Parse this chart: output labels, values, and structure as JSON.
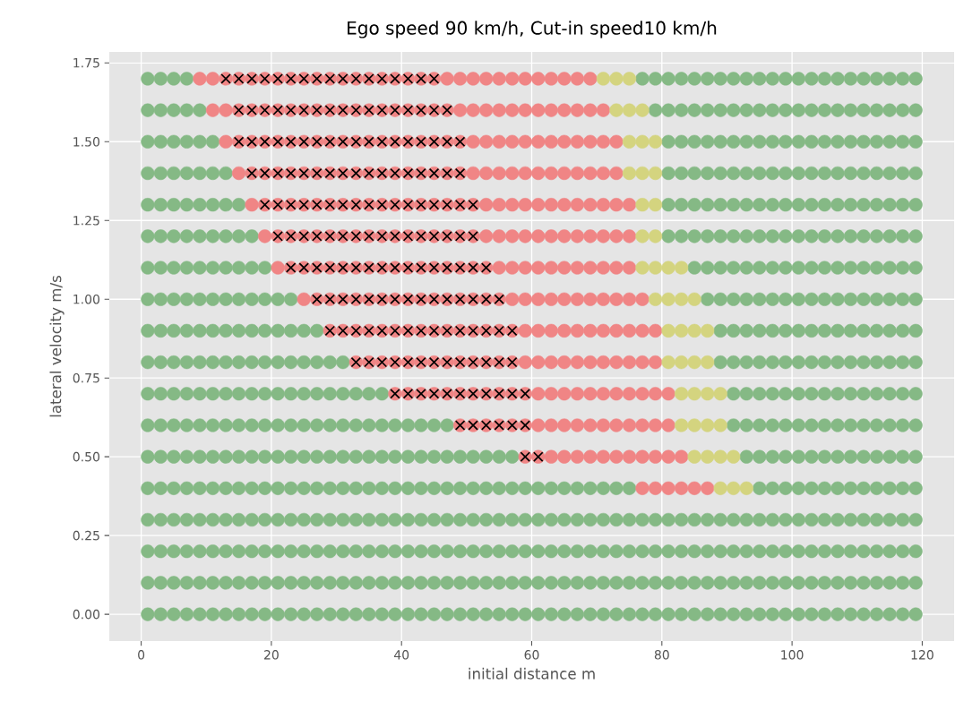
{
  "chart_data": {
    "type": "scatter",
    "title": "Ego speed 90 km/h, Cut-in speed10 km/h",
    "xlabel": "initial distance m",
    "ylabel": "lateral velocity m/s",
    "xlim": [
      -4.9,
      124.9
    ],
    "ylim": [
      -0.085,
      1.785
    ],
    "xticks": [
      0,
      20,
      40,
      60,
      80,
      100,
      120
    ],
    "yticks": [
      {
        "value": 0,
        "label": "0.00"
      },
      {
        "value": 0.25,
        "label": "0.25"
      },
      {
        "value": 0.5,
        "label": "0.50"
      },
      {
        "value": 0.75,
        "label": "0.75"
      },
      {
        "value": 1,
        "label": "1.00"
      },
      {
        "value": 1.25,
        "label": "1.25"
      },
      {
        "value": 1.5,
        "label": "1.50"
      },
      {
        "value": 1.75,
        "label": "1.75"
      }
    ],
    "grid": true,
    "series": [
      {
        "color": "#85b985",
        "marker": "circle",
        "x": [
          1,
          3,
          5,
          7,
          9,
          11,
          13,
          15,
          17,
          19,
          21,
          23,
          25,
          27,
          29,
          31,
          33,
          35,
          37,
          39,
          41,
          43,
          45,
          47,
          49,
          51,
          53,
          55,
          57,
          59,
          61,
          63,
          65,
          67,
          69,
          71,
          73,
          75,
          77,
          79,
          81,
          83,
          85,
          87,
          89,
          91,
          93,
          95,
          97,
          99,
          101,
          103,
          105,
          107,
          109,
          111,
          113,
          115,
          117,
          119,
          1,
          3,
          5,
          7,
          9,
          11,
          13,
          15,
          17,
          19,
          21,
          23,
          25,
          27,
          29,
          31,
          33,
          35,
          37,
          39,
          41,
          43,
          45,
          47,
          49,
          51,
          53,
          55,
          57,
          59,
          61,
          63,
          65,
          67,
          69,
          71,
          73,
          75,
          77,
          79,
          81,
          83,
          85,
          87,
          89,
          91,
          93,
          95,
          97,
          99,
          101,
          103,
          105,
          107,
          109,
          111,
          113,
          115,
          117,
          119,
          1,
          3,
          5,
          7,
          9,
          11,
          13,
          15,
          17,
          19,
          21,
          23,
          25,
          27,
          29,
          31,
          33,
          35,
          37,
          39,
          41,
          43,
          45,
          47,
          49,
          51,
          53,
          55,
          57,
          59,
          61,
          63,
          65,
          67,
          69,
          71,
          73,
          75,
          77,
          79,
          81,
          83,
          85,
          87,
          89,
          91,
          93,
          95,
          97,
          99,
          101,
          103,
          105,
          107,
          109,
          111,
          113,
          115,
          117,
          119,
          1,
          3,
          5,
          7,
          9,
          11,
          13,
          15,
          17,
          19,
          21,
          23,
          25,
          27,
          29,
          31,
          33,
          35,
          37,
          39,
          41,
          43,
          45,
          47,
          49,
          51,
          53,
          55,
          57,
          59,
          61,
          63,
          65,
          67,
          69,
          71,
          73,
          75,
          77,
          79,
          81,
          83,
          85,
          87,
          89,
          91,
          93,
          95,
          97,
          99,
          101,
          103,
          105,
          107,
          109,
          111,
          113,
          115,
          117,
          119,
          1,
          3,
          5,
          7,
          9,
          11,
          13,
          15,
          17,
          19,
          21,
          23,
          25,
          27,
          29,
          31,
          33,
          35,
          37,
          39,
          41,
          43,
          45,
          47,
          49,
          51,
          53,
          55,
          57,
          59,
          61,
          63,
          65,
          67,
          69,
          71,
          73,
          75,
          95,
          97,
          99,
          101,
          103,
          105,
          107,
          109,
          111,
          113,
          115,
          117,
          119,
          1,
          3,
          5,
          7,
          9,
          11,
          13,
          15,
          17,
          19,
          21,
          23,
          25,
          27,
          29,
          31,
          33,
          35,
          37,
          39,
          41,
          43,
          45,
          47,
          49,
          51,
          53,
          55,
          57,
          93,
          95,
          97,
          99,
          101,
          103,
          105,
          107,
          109,
          111,
          113,
          115,
          117,
          119,
          1,
          3,
          5,
          7,
          9,
          11,
          13,
          15,
          17,
          19,
          21,
          23,
          25,
          27,
          29,
          31,
          33,
          35,
          37,
          39,
          41,
          43,
          45,
          47,
          91,
          93,
          95,
          97,
          99,
          101,
          103,
          105,
          107,
          109,
          111,
          113,
          115,
          117,
          119,
          1,
          3,
          5,
          7,
          9,
          11,
          13,
          15,
          17,
          19,
          21,
          23,
          25,
          27,
          29,
          31,
          33,
          35,
          37,
          91,
          93,
          95,
          97,
          99,
          101,
          103,
          105,
          107,
          109,
          111,
          113,
          115,
          117,
          119,
          1,
          3,
          5,
          7,
          9,
          11,
          13,
          15,
          17,
          19,
          21,
          23,
          25,
          27,
          29,
          31,
          89,
          91,
          93,
          95,
          97,
          99,
          101,
          103,
          105,
          107,
          109,
          111,
          113,
          115,
          117,
          119,
          1,
          3,
          5,
          7,
          9,
          11,
          13,
          15,
          17,
          19,
          21,
          23,
          25,
          27,
          89,
          91,
          93,
          95,
          97,
          99,
          101,
          103,
          105,
          107,
          109,
          111,
          113,
          115,
          117,
          119,
          1,
          3,
          5,
          7,
          9,
          11,
          13,
          15,
          17,
          19,
          21,
          23,
          87,
          89,
          91,
          93,
          95,
          97,
          99,
          101,
          103,
          105,
          107,
          109,
          111,
          113,
          115,
          117,
          119,
          1,
          3,
          5,
          7,
          9,
          11,
          13,
          15,
          17,
          19,
          85,
          87,
          89,
          91,
          93,
          95,
          97,
          99,
          101,
          103,
          105,
          107,
          109,
          111,
          113,
          115,
          117,
          119,
          1,
          3,
          5,
          7,
          9,
          11,
          13,
          15,
          17,
          81,
          83,
          85,
          87,
          89,
          91,
          93,
          95,
          97,
          99,
          101,
          103,
          105,
          107,
          109,
          111,
          113,
          115,
          117,
          119,
          1,
          3,
          5,
          7,
          9,
          11,
          13,
          15,
          81,
          83,
          85,
          87,
          89,
          91,
          93,
          95,
          97,
          99,
          101,
          103,
          105,
          107,
          109,
          111,
          113,
          115,
          117,
          119,
          1,
          3,
          5,
          7,
          9,
          11,
          13,
          81,
          83,
          85,
          87,
          89,
          91,
          93,
          95,
          97,
          99,
          101,
          103,
          105,
          107,
          109,
          111,
          113,
          115,
          117,
          119,
          1,
          3,
          5,
          7,
          9,
          11,
          81,
          83,
          85,
          87,
          89,
          91,
          93,
          95,
          97,
          99,
          101,
          103,
          105,
          107,
          109,
          111,
          113,
          115,
          117,
          119,
          1,
          3,
          5,
          7,
          9,
          79,
          81,
          83,
          85,
          87,
          89,
          91,
          93,
          95,
          97,
          99,
          101,
          103,
          105,
          107,
          109,
          111,
          113,
          115,
          117,
          119,
          1,
          3,
          5,
          7,
          77,
          79,
          81,
          83,
          85,
          87,
          89,
          91,
          93,
          95,
          97,
          99,
          101,
          103,
          105,
          107,
          109,
          111,
          113,
          115,
          117,
          119
        ],
        "values": [
          0,
          0,
          0,
          0,
          0,
          0,
          0,
          0,
          0,
          0,
          0,
          0,
          0,
          0,
          0,
          0,
          0,
          0,
          0,
          0,
          0,
          0,
          0,
          0,
          0,
          0,
          0,
          0,
          0,
          0,
          0,
          0,
          0,
          0,
          0,
          0,
          0,
          0,
          0,
          0,
          0,
          0,
          0,
          0,
          0,
          0,
          0,
          0,
          0,
          0,
          0,
          0,
          0,
          0,
          0,
          0,
          0,
          0,
          0,
          0,
          0.1,
          0.1,
          0.1,
          0.1,
          0.1,
          0.1,
          0.1,
          0.1,
          0.1,
          0.1,
          0.1,
          0.1,
          0.1,
          0.1,
          0.1,
          0.1,
          0.1,
          0.1,
          0.1,
          0.1,
          0.1,
          0.1,
          0.1,
          0.1,
          0.1,
          0.1,
          0.1,
          0.1,
          0.1,
          0.1,
          0.1,
          0.1,
          0.1,
          0.1,
          0.1,
          0.1,
          0.1,
          0.1,
          0.1,
          0.1,
          0.1,
          0.1,
          0.1,
          0.1,
          0.1,
          0.1,
          0.1,
          0.1,
          0.1,
          0.1,
          0.1,
          0.1,
          0.1,
          0.1,
          0.1,
          0.1,
          0.1,
          0.1,
          0.1,
          0.1,
          0.2,
          0.2,
          0.2,
          0.2,
          0.2,
          0.2,
          0.2,
          0.2,
          0.2,
          0.2,
          0.2,
          0.2,
          0.2,
          0.2,
          0.2,
          0.2,
          0.2,
          0.2,
          0.2,
          0.2,
          0.2,
          0.2,
          0.2,
          0.2,
          0.2,
          0.2,
          0.2,
          0.2,
          0.2,
          0.2,
          0.2,
          0.2,
          0.2,
          0.2,
          0.2,
          0.2,
          0.2,
          0.2,
          0.2,
          0.2,
          0.2,
          0.2,
          0.2,
          0.2,
          0.2,
          0.2,
          0.2,
          0.2,
          0.2,
          0.2,
          0.2,
          0.2,
          0.2,
          0.2,
          0.2,
          0.2,
          0.2,
          0.2,
          0.2,
          0.2,
          0.3,
          0.3,
          0.3,
          0.3,
          0.3,
          0.3,
          0.3,
          0.3,
          0.3,
          0.3,
          0.3,
          0.3,
          0.3,
          0.3,
          0.3,
          0.3,
          0.3,
          0.3,
          0.3,
          0.3,
          0.3,
          0.3,
          0.3,
          0.3,
          0.3,
          0.3,
          0.3,
          0.3,
          0.3,
          0.3,
          0.3,
          0.3,
          0.3,
          0.3,
          0.3,
          0.3,
          0.3,
          0.3,
          0.3,
          0.3,
          0.3,
          0.3,
          0.3,
          0.3,
          0.3,
          0.3,
          0.3,
          0.3,
          0.3,
          0.3,
          0.3,
          0.3,
          0.3,
          0.3,
          0.3,
          0.3,
          0.3,
          0.3,
          0.3,
          0.3,
          0.4,
          0.4,
          0.4,
          0.4,
          0.4,
          0.4,
          0.4,
          0.4,
          0.4,
          0.4,
          0.4,
          0.4,
          0.4,
          0.4,
          0.4,
          0.4,
          0.4,
          0.4,
          0.4,
          0.4,
          0.4,
          0.4,
          0.4,
          0.4,
          0.4,
          0.4,
          0.4,
          0.4,
          0.4,
          0.4,
          0.4,
          0.4,
          0.4,
          0.4,
          0.4,
          0.4,
          0.4,
          0.4,
          0.4,
          0.4,
          0.4,
          0.4,
          0.4,
          0.4,
          0.4,
          0.4,
          0.4,
          0.4,
          0.4,
          0.4,
          0.4,
          0.5,
          0.5,
          0.5,
          0.5,
          0.5,
          0.5,
          0.5,
          0.5,
          0.5,
          0.5,
          0.5,
          0.5,
          0.5,
          0.5,
          0.5,
          0.5,
          0.5,
          0.5,
          0.5,
          0.5,
          0.5,
          0.5,
          0.5,
          0.5,
          0.5,
          0.5,
          0.5,
          0.5,
          0.5,
          0.5,
          0.5,
          0.5,
          0.5,
          0.5,
          0.5,
          0.5,
          0.5,
          0.5,
          0.5,
          0.5,
          0.5,
          0.5,
          0.5,
          0.6,
          0.6,
          0.6,
          0.6,
          0.6,
          0.6,
          0.6,
          0.6,
          0.6,
          0.6,
          0.6,
          0.6,
          0.6,
          0.6,
          0.6,
          0.6,
          0.6,
          0.6,
          0.6,
          0.6,
          0.6,
          0.6,
          0.6,
          0.6,
          0.6,
          0.6,
          0.6,
          0.6,
          0.6,
          0.6,
          0.6,
          0.6,
          0.6,
          0.6,
          0.6,
          0.6,
          0.6,
          0.6,
          0.6,
          0.7,
          0.7,
          0.7,
          0.7,
          0.7,
          0.7,
          0.7,
          0.7,
          0.7,
          0.7,
          0.7,
          0.7,
          0.7,
          0.7,
          0.7,
          0.7,
          0.7,
          0.7,
          0.7,
          0.7,
          0.7,
          0.7,
          0.7,
          0.7,
          0.7,
          0.7,
          0.7,
          0.7,
          0.7,
          0.7,
          0.7,
          0.7,
          0.7,
          0.7,
          0.8,
          0.8,
          0.8,
          0.8,
          0.8,
          0.8,
          0.8,
          0.8,
          0.8,
          0.8,
          0.8,
          0.8,
          0.8,
          0.8,
          0.8,
          0.8,
          0.8,
          0.8,
          0.8,
          0.8,
          0.8,
          0.8,
          0.8,
          0.8,
          0.8,
          0.8,
          0.8,
          0.8,
          0.8,
          0.8,
          0.8,
          0.8,
          0.9,
          0.9,
          0.9,
          0.9,
          0.9,
          0.9,
          0.9,
          0.9,
          0.9,
          0.9,
          0.9,
          0.9,
          0.9,
          0.9,
          0.9,
          0.9,
          0.9,
          0.9,
          0.9,
          0.9,
          0.9,
          0.9,
          0.9,
          0.9,
          0.9,
          0.9,
          0.9,
          0.9,
          0.9,
          0.9,
          1,
          1,
          1,
          1,
          1,
          1,
          1,
          1,
          1,
          1,
          1,
          1,
          1,
          1,
          1,
          1,
          1,
          1,
          1,
          1,
          1,
          1,
          1,
          1,
          1,
          1,
          1,
          1,
          1,
          1.1,
          1.1,
          1.1,
          1.1,
          1.1,
          1.1,
          1.1,
          1.1,
          1.1,
          1.1,
          1.1,
          1.1,
          1.1,
          1.1,
          1.1,
          1.1,
          1.1,
          1.1,
          1.1,
          1.1,
          1.1,
          1.1,
          1.1,
          1.1,
          1.1,
          1.1,
          1.1,
          1.1,
          1.2,
          1.2,
          1.2,
          1.2,
          1.2,
          1.2,
          1.2,
          1.2,
          1.2,
          1.2,
          1.2,
          1.2,
          1.2,
          1.2,
          1.2,
          1.2,
          1.2,
          1.2,
          1.2,
          1.2,
          1.2,
          1.2,
          1.2,
          1.2,
          1.2,
          1.2,
          1.2,
          1.2,
          1.2,
          1.3,
          1.3,
          1.3,
          1.3,
          1.3,
          1.3,
          1.3,
          1.3,
          1.3,
          1.3,
          1.3,
          1.3,
          1.3,
          1.3,
          1.3,
          1.3,
          1.3,
          1.3,
          1.3,
          1.3,
          1.3,
          1.3,
          1.3,
          1.3,
          1.3,
          1.3,
          1.3,
          1.3,
          1.4,
          1.4,
          1.4,
          1.4,
          1.4,
          1.4,
          1.4,
          1.4,
          1.4,
          1.4,
          1.4,
          1.4,
          1.4,
          1.4,
          1.4,
          1.4,
          1.4,
          1.4,
          1.4,
          1.4,
          1.4,
          1.4,
          1.4,
          1.4,
          1.4,
          1.4,
          1.4,
          1.5,
          1.5,
          1.5,
          1.5,
          1.5,
          1.5,
          1.5,
          1.5,
          1.5,
          1.5,
          1.5,
          1.5,
          1.5,
          1.5,
          1.5,
          1.5,
          1.5,
          1.5,
          1.5,
          1.5,
          1.5,
          1.5,
          1.5,
          1.5,
          1.5,
          1.5,
          1.6,
          1.6,
          1.6,
          1.6,
          1.6,
          1.6,
          1.6,
          1.6,
          1.6,
          1.6,
          1.6,
          1.6,
          1.6,
          1.6,
          1.6,
          1.6,
          1.6,
          1.6,
          1.6,
          1.6,
          1.6,
          1.6,
          1.6,
          1.6,
          1.6,
          1.6,
          1.7,
          1.7,
          1.7,
          1.7,
          1.7,
          1.7,
          1.7,
          1.7,
          1.7,
          1.7,
          1.7,
          1.7,
          1.7,
          1.7,
          1.7,
          1.7,
          1.7,
          1.7,
          1.7,
          1.7,
          1.7,
          1.7,
          1.7,
          1.7,
          1.7,
          1.7
        ]
      },
      {
        "color": "#f08585",
        "marker": "circle",
        "x": [
          77,
          79,
          81,
          83,
          85,
          87,
          59,
          61,
          63,
          65,
          67,
          69,
          71,
          73,
          75,
          77,
          79,
          81,
          83,
          49,
          51,
          53,
          55,
          57,
          59,
          61,
          63,
          65,
          67,
          69,
          71,
          73,
          75,
          77,
          79,
          81,
          39,
          41,
          43,
          45,
          47,
          49,
          51,
          53,
          55,
          57,
          59,
          61,
          63,
          65,
          67,
          69,
          71,
          73,
          75,
          77,
          79,
          81,
          33,
          35,
          37,
          39,
          41,
          43,
          45,
          47,
          49,
          51,
          53,
          55,
          57,
          59,
          61,
          63,
          65,
          67,
          69,
          71,
          73,
          75,
          77,
          79,
          29,
          31,
          33,
          35,
          37,
          39,
          41,
          43,
          45,
          47,
          49,
          51,
          53,
          55,
          57,
          59,
          61,
          63,
          65,
          67,
          69,
          71,
          73,
          75,
          77,
          79,
          25,
          27,
          29,
          31,
          33,
          35,
          37,
          39,
          41,
          43,
          45,
          47,
          49,
          51,
          53,
          55,
          57,
          59,
          61,
          63,
          65,
          67,
          69,
          71,
          73,
          75,
          77,
          21,
          23,
          25,
          27,
          29,
          31,
          33,
          35,
          37,
          39,
          41,
          43,
          45,
          47,
          49,
          51,
          53,
          55,
          57,
          59,
          61,
          63,
          65,
          67,
          69,
          71,
          73,
          75,
          19,
          21,
          23,
          25,
          27,
          29,
          31,
          33,
          35,
          37,
          39,
          41,
          43,
          45,
          47,
          49,
          51,
          53,
          55,
          57,
          59,
          61,
          63,
          65,
          67,
          69,
          71,
          73,
          75,
          17,
          19,
          21,
          23,
          25,
          27,
          29,
          31,
          33,
          35,
          37,
          39,
          41,
          43,
          45,
          47,
          49,
          51,
          53,
          55,
          57,
          59,
          61,
          63,
          65,
          67,
          69,
          71,
          73,
          75,
          15,
          17,
          19,
          21,
          23,
          25,
          27,
          29,
          31,
          33,
          35,
          37,
          39,
          41,
          43,
          45,
          47,
          49,
          51,
          53,
          55,
          57,
          59,
          61,
          63,
          65,
          67,
          69,
          71,
          73,
          13,
          15,
          17,
          19,
          21,
          23,
          25,
          27,
          29,
          31,
          33,
          35,
          37,
          39,
          41,
          43,
          45,
          47,
          49,
          51,
          53,
          55,
          57,
          59,
          61,
          63,
          65,
          67,
          69,
          71,
          73,
          11,
          13,
          15,
          17,
          19,
          21,
          23,
          25,
          27,
          29,
          31,
          33,
          35,
          37,
          39,
          41,
          43,
          45,
          47,
          49,
          51,
          53,
          55,
          57,
          59,
          61,
          63,
          65,
          67,
          69,
          71,
          9,
          11,
          13,
          15,
          17,
          19,
          21,
          23,
          25,
          27,
          29,
          31,
          33,
          35,
          37,
          39,
          41,
          43,
          45,
          47,
          49,
          51,
          53,
          55,
          57,
          59,
          61,
          63,
          65,
          67,
          69
        ],
        "values": [
          0.4,
          0.4,
          0.4,
          0.4,
          0.4,
          0.4,
          0.5,
          0.5,
          0.5,
          0.5,
          0.5,
          0.5,
          0.5,
          0.5,
          0.5,
          0.5,
          0.5,
          0.5,
          0.5,
          0.6,
          0.6,
          0.6,
          0.6,
          0.6,
          0.6,
          0.6,
          0.6,
          0.6,
          0.6,
          0.6,
          0.6,
          0.6,
          0.6,
          0.6,
          0.6,
          0.6,
          0.7,
          0.7,
          0.7,
          0.7,
          0.7,
          0.7,
          0.7,
          0.7,
          0.7,
          0.7,
          0.7,
          0.7,
          0.7,
          0.7,
          0.7,
          0.7,
          0.7,
          0.7,
          0.7,
          0.7,
          0.7,
          0.7,
          0.8,
          0.8,
          0.8,
          0.8,
          0.8,
          0.8,
          0.8,
          0.8,
          0.8,
          0.8,
          0.8,
          0.8,
          0.8,
          0.8,
          0.8,
          0.8,
          0.8,
          0.8,
          0.8,
          0.8,
          0.8,
          0.8,
          0.8,
          0.8,
          0.9,
          0.9,
          0.9,
          0.9,
          0.9,
          0.9,
          0.9,
          0.9,
          0.9,
          0.9,
          0.9,
          0.9,
          0.9,
          0.9,
          0.9,
          0.9,
          0.9,
          0.9,
          0.9,
          0.9,
          0.9,
          0.9,
          0.9,
          0.9,
          0.9,
          0.9,
          1,
          1,
          1,
          1,
          1,
          1,
          1,
          1,
          1,
          1,
          1,
          1,
          1,
          1,
          1,
          1,
          1,
          1,
          1,
          1,
          1,
          1,
          1,
          1,
          1,
          1,
          1,
          1.1,
          1.1,
          1.1,
          1.1,
          1.1,
          1.1,
          1.1,
          1.1,
          1.1,
          1.1,
          1.1,
          1.1,
          1.1,
          1.1,
          1.1,
          1.1,
          1.1,
          1.1,
          1.1,
          1.1,
          1.1,
          1.1,
          1.1,
          1.1,
          1.1,
          1.1,
          1.1,
          1.1,
          1.2,
          1.2,
          1.2,
          1.2,
          1.2,
          1.2,
          1.2,
          1.2,
          1.2,
          1.2,
          1.2,
          1.2,
          1.2,
          1.2,
          1.2,
          1.2,
          1.2,
          1.2,
          1.2,
          1.2,
          1.2,
          1.2,
          1.2,
          1.2,
          1.2,
          1.2,
          1.2,
          1.2,
          1.2,
          1.3,
          1.3,
          1.3,
          1.3,
          1.3,
          1.3,
          1.3,
          1.3,
          1.3,
          1.3,
          1.3,
          1.3,
          1.3,
          1.3,
          1.3,
          1.3,
          1.3,
          1.3,
          1.3,
          1.3,
          1.3,
          1.3,
          1.3,
          1.3,
          1.3,
          1.3,
          1.3,
          1.3,
          1.3,
          1.3,
          1.4,
          1.4,
          1.4,
          1.4,
          1.4,
          1.4,
          1.4,
          1.4,
          1.4,
          1.4,
          1.4,
          1.4,
          1.4,
          1.4,
          1.4,
          1.4,
          1.4,
          1.4,
          1.4,
          1.4,
          1.4,
          1.4,
          1.4,
          1.4,
          1.4,
          1.4,
          1.4,
          1.4,
          1.4,
          1.4,
          1.5,
          1.5,
          1.5,
          1.5,
          1.5,
          1.5,
          1.5,
          1.5,
          1.5,
          1.5,
          1.5,
          1.5,
          1.5,
          1.5,
          1.5,
          1.5,
          1.5,
          1.5,
          1.5,
          1.5,
          1.5,
          1.5,
          1.5,
          1.5,
          1.5,
          1.5,
          1.5,
          1.5,
          1.5,
          1.5,
          1.5,
          1.6,
          1.6,
          1.6,
          1.6,
          1.6,
          1.6,
          1.6,
          1.6,
          1.6,
          1.6,
          1.6,
          1.6,
          1.6,
          1.6,
          1.6,
          1.6,
          1.6,
          1.6,
          1.6,
          1.6,
          1.6,
          1.6,
          1.6,
          1.6,
          1.6,
          1.6,
          1.6,
          1.6,
          1.6,
          1.6,
          1.6,
          1.7,
          1.7,
          1.7,
          1.7,
          1.7,
          1.7,
          1.7,
          1.7,
          1.7,
          1.7,
          1.7,
          1.7,
          1.7,
          1.7,
          1.7,
          1.7,
          1.7,
          1.7,
          1.7,
          1.7,
          1.7,
          1.7,
          1.7,
          1.7,
          1.7,
          1.7,
          1.7,
          1.7,
          1.7,
          1.7,
          1.7
        ]
      },
      {
        "color": "#d4d47f",
        "marker": "circle",
        "x": [
          89,
          91,
          93,
          85,
          87,
          89,
          91,
          83,
          85,
          87,
          89,
          83,
          85,
          87,
          89,
          81,
          83,
          85,
          87,
          81,
          83,
          85,
          87,
          79,
          81,
          83,
          85,
          77,
          79,
          81,
          83,
          77,
          79,
          77,
          79,
          75,
          77,
          79,
          75,
          77,
          79,
          73,
          75,
          77,
          71,
          73,
          75
        ],
        "values": [
          0.4,
          0.4,
          0.4,
          0.5,
          0.5,
          0.5,
          0.5,
          0.6,
          0.6,
          0.6,
          0.6,
          0.7,
          0.7,
          0.7,
          0.7,
          0.8,
          0.8,
          0.8,
          0.8,
          0.9,
          0.9,
          0.9,
          0.9,
          1,
          1,
          1,
          1,
          1.1,
          1.1,
          1.1,
          1.1,
          1.2,
          1.2,
          1.3,
          1.3,
          1.4,
          1.4,
          1.4,
          1.5,
          1.5,
          1.5,
          1.6,
          1.6,
          1.6,
          1.7,
          1.7,
          1.7
        ]
      },
      {
        "color": "#000000",
        "marker": "cross",
        "x": [
          59,
          61,
          49,
          51,
          53,
          55,
          57,
          59,
          39,
          41,
          43,
          45,
          47,
          49,
          51,
          53,
          55,
          57,
          59,
          33,
          35,
          37,
          39,
          41,
          43,
          45,
          47,
          49,
          51,
          53,
          55,
          57,
          29,
          31,
          33,
          35,
          37,
          39,
          41,
          43,
          45,
          47,
          49,
          51,
          53,
          55,
          57,
          27,
          29,
          31,
          33,
          35,
          37,
          39,
          41,
          43,
          45,
          47,
          49,
          51,
          53,
          55,
          23,
          25,
          27,
          29,
          31,
          33,
          35,
          37,
          39,
          41,
          43,
          45,
          47,
          49,
          51,
          53,
          21,
          23,
          25,
          27,
          29,
          31,
          33,
          35,
          37,
          39,
          41,
          43,
          45,
          47,
          49,
          51,
          19,
          21,
          23,
          25,
          27,
          29,
          31,
          33,
          35,
          37,
          39,
          41,
          43,
          45,
          47,
          49,
          51,
          17,
          19,
          21,
          23,
          25,
          27,
          29,
          31,
          33,
          35,
          37,
          39,
          41,
          43,
          45,
          47,
          49,
          15,
          17,
          19,
          21,
          23,
          25,
          27,
          29,
          31,
          33,
          35,
          37,
          39,
          41,
          43,
          45,
          47,
          49,
          15,
          17,
          19,
          21,
          23,
          25,
          27,
          29,
          31,
          33,
          35,
          37,
          39,
          41,
          43,
          45,
          47,
          13,
          15,
          17,
          19,
          21,
          23,
          25,
          27,
          29,
          31,
          33,
          35,
          37,
          39,
          41,
          43,
          45
        ],
        "values": [
          0.5,
          0.5,
          0.6,
          0.6,
          0.6,
          0.6,
          0.6,
          0.6,
          0.7,
          0.7,
          0.7,
          0.7,
          0.7,
          0.7,
          0.7,
          0.7,
          0.7,
          0.7,
          0.7,
          0.8,
          0.8,
          0.8,
          0.8,
          0.8,
          0.8,
          0.8,
          0.8,
          0.8,
          0.8,
          0.8,
          0.8,
          0.8,
          0.9,
          0.9,
          0.9,
          0.9,
          0.9,
          0.9,
          0.9,
          0.9,
          0.9,
          0.9,
          0.9,
          0.9,
          0.9,
          0.9,
          0.9,
          1,
          1,
          1,
          1,
          1,
          1,
          1,
          1,
          1,
          1,
          1,
          1,
          1,
          1,
          1,
          1.1,
          1.1,
          1.1,
          1.1,
          1.1,
          1.1,
          1.1,
          1.1,
          1.1,
          1.1,
          1.1,
          1.1,
          1.1,
          1.1,
          1.1,
          1.1,
          1.2,
          1.2,
          1.2,
          1.2,
          1.2,
          1.2,
          1.2,
          1.2,
          1.2,
          1.2,
          1.2,
          1.2,
          1.2,
          1.2,
          1.2,
          1.2,
          1.3,
          1.3,
          1.3,
          1.3,
          1.3,
          1.3,
          1.3,
          1.3,
          1.3,
          1.3,
          1.3,
          1.3,
          1.3,
          1.3,
          1.3,
          1.3,
          1.3,
          1.4,
          1.4,
          1.4,
          1.4,
          1.4,
          1.4,
          1.4,
          1.4,
          1.4,
          1.4,
          1.4,
          1.4,
          1.4,
          1.4,
          1.4,
          1.4,
          1.4,
          1.5,
          1.5,
          1.5,
          1.5,
          1.5,
          1.5,
          1.5,
          1.5,
          1.5,
          1.5,
          1.5,
          1.5,
          1.5,
          1.5,
          1.5,
          1.5,
          1.5,
          1.5,
          1.6,
          1.6,
          1.6,
          1.6,
          1.6,
          1.6,
          1.6,
          1.6,
          1.6,
          1.6,
          1.6,
          1.6,
          1.6,
          1.6,
          1.6,
          1.6,
          1.6,
          1.7,
          1.7,
          1.7,
          1.7,
          1.7,
          1.7,
          1.7,
          1.7,
          1.7,
          1.7,
          1.7,
          1.7,
          1.7,
          1.7,
          1.7,
          1.7,
          1.7
        ]
      }
    ]
  }
}
